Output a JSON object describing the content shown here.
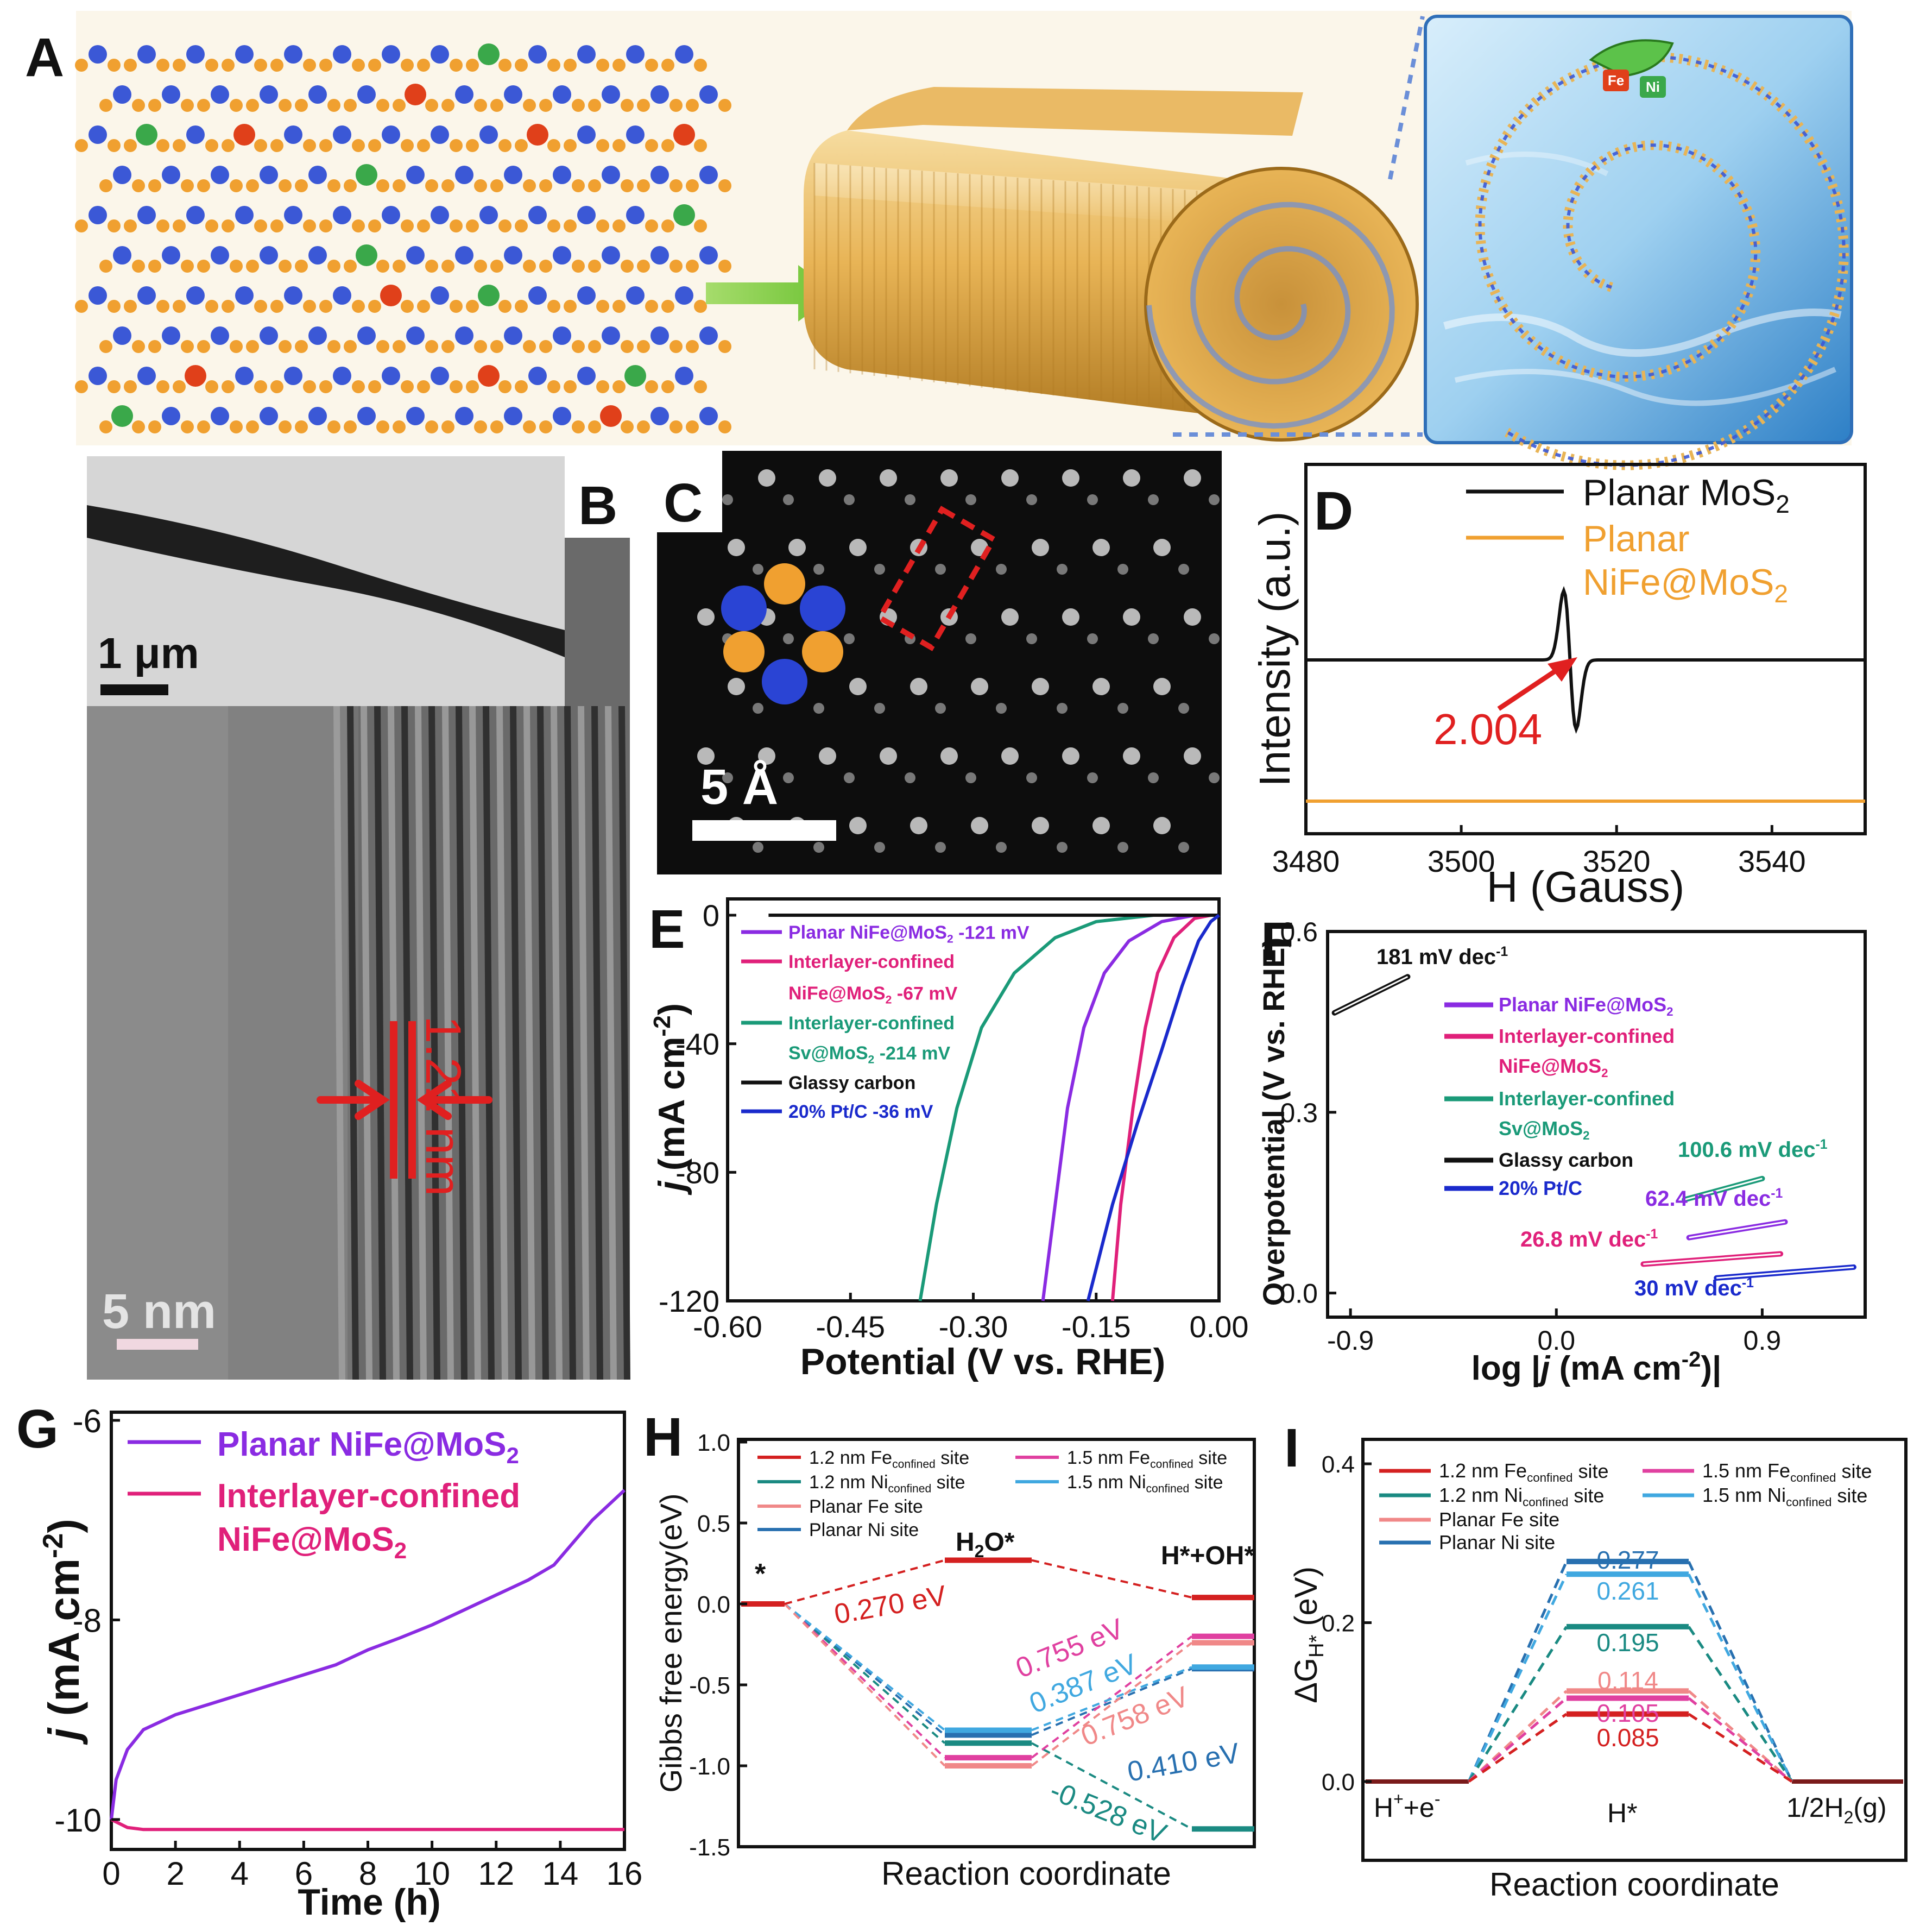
{
  "panel_letters": {
    "A": "A",
    "B": "B",
    "C": "C",
    "D": "D",
    "E": "E",
    "F": "F",
    "G": "G",
    "H": "H",
    "I": "I"
  },
  "images": {
    "panel_a": {
      "atoms": [
        "Fe",
        "Ni"
      ]
    },
    "panel_b": {
      "inset_scale": "1 μm",
      "scale": "5 nm",
      "spacing": "1.21 nm"
    },
    "panel_c": {
      "scale": "5 Å"
    }
  },
  "colors": {
    "black": "#111111",
    "orange": "#f0a030",
    "red": "#e02020",
    "purple": "#8a2be2",
    "pink": "#e0207a",
    "green": "#1a9a78",
    "blue": "#1a2acc",
    "h_red": "#d42020",
    "h_teal": "#1a8a82",
    "h_salmon": "#f08888",
    "h_navy": "#2870b0",
    "h_magenta": "#e040a0",
    "h_sky": "#40a8e0"
  },
  "chart_data": [
    {
      "panel": "D",
      "type": "line",
      "xlabel": "H (Gauss)",
      "ylabel": "Intensity (a.u.)",
      "xlim": [
        3480,
        3552
      ],
      "xticks": [
        "3480",
        "3500",
        "3520",
        "3540"
      ],
      "series": [
        {
          "name": "Planar MoS2",
          "label_main": "Planar MoS",
          "label_sub": "2",
          "color_key": "black",
          "shape": "derivative peak",
          "center_gauss": 3514
        },
        {
          "name": "Planar NiFe@MoS2",
          "label_main": "Planar",
          "label_line2": "NiFe@MoS",
          "label_sub": "2",
          "color_key": "orange",
          "shape": "flat"
        }
      ],
      "annotation": "2.004"
    },
    {
      "panel": "E",
      "type": "line",
      "xlabel": "Potential (V vs. RHE)",
      "ylabel_main": "j",
      "ylabel_rest": " (mA cm",
      "ylabel_sup": "-2",
      "ylabel_end": ")",
      "xlim": [
        -0.6,
        0.0
      ],
      "ylim": [
        -120,
        0
      ],
      "xticks": [
        "-0.60",
        "-0.45",
        "-0.30",
        "-0.15",
        "0.00"
      ],
      "yticks": [
        "0",
        "-40",
        "-80",
        "-120"
      ],
      "legend": [
        {
          "color_key": "purple",
          "lines": [
            "Planar NiFe@MoS",
            "2",
            " -121 mV"
          ]
        },
        {
          "color_key": "pink",
          "lines": [
            "Interlayer-confined",
            "NiFe@MoS",
            "2",
            " -67 mV"
          ]
        },
        {
          "color_key": "green",
          "lines": [
            "Interlayer-confined",
            "Sv@MoS",
            "2",
            " -214 mV"
          ]
        },
        {
          "color_key": "black",
          "lines": [
            "Glassy carbon"
          ]
        },
        {
          "color_key": "blue",
          "lines": [
            "20% Pt/C -36 mV"
          ]
        }
      ],
      "series": [
        {
          "name": "Planar NiFe@MoS2",
          "color_key": "purple",
          "points": [
            [
              -0.215,
              -120
            ],
            [
              -0.2,
              -90
            ],
            [
              -0.185,
              -60
            ],
            [
              -0.165,
              -35
            ],
            [
              -0.14,
              -18
            ],
            [
              -0.11,
              -8
            ],
            [
              -0.07,
              -2
            ],
            [
              -0.03,
              0
            ]
          ]
        },
        {
          "name": "Interlayer-confined NiFe@MoS2",
          "color_key": "pink",
          "points": [
            [
              -0.13,
              -120
            ],
            [
              -0.12,
              -90
            ],
            [
              -0.105,
              -60
            ],
            [
              -0.09,
              -35
            ],
            [
              -0.075,
              -18
            ],
            [
              -0.055,
              -7
            ],
            [
              -0.03,
              -1
            ],
            [
              -0.01,
              0
            ]
          ]
        },
        {
          "name": "Interlayer-confined Sv@MoS2",
          "color_key": "green",
          "points": [
            [
              -0.365,
              -120
            ],
            [
              -0.345,
              -90
            ],
            [
              -0.32,
              -60
            ],
            [
              -0.29,
              -35
            ],
            [
              -0.25,
              -18
            ],
            [
              -0.2,
              -7
            ],
            [
              -0.15,
              -2
            ],
            [
              -0.08,
              0
            ]
          ]
        },
        {
          "name": "Glassy carbon",
          "color_key": "black",
          "points": [
            [
              -0.55,
              0
            ],
            [
              -0.3,
              0
            ],
            [
              -0.1,
              0
            ],
            [
              0.0,
              0
            ]
          ]
        },
        {
          "name": "20% Pt/C",
          "color_key": "blue",
          "points": [
            [
              -0.16,
              -120
            ],
            [
              -0.13,
              -90
            ],
            [
              -0.1,
              -65
            ],
            [
              -0.07,
              -42
            ],
            [
              -0.045,
              -22
            ],
            [
              -0.025,
              -8
            ],
            [
              -0.01,
              -2
            ],
            [
              0.0,
              0
            ]
          ]
        }
      ]
    },
    {
      "panel": "F",
      "type": "line",
      "xlabel_main": "log |",
      "xlabel_j": "j",
      "xlabel_rest": " (mA cm",
      "xlabel_sup": "-2",
      "xlabel_end": ")|",
      "ylabel": "Overpotential (V vs. RHE)",
      "xlim": [
        -1.0,
        1.35
      ],
      "ylim": [
        -0.04,
        0.6
      ],
      "xticks": [
        "-0.9",
        "0.0",
        "0.9"
      ],
      "yticks": [
        "0.0",
        "0.3",
        "0.6"
      ],
      "legend": [
        {
          "color_key": "purple",
          "lines": [
            "Planar NiFe@MoS",
            "2"
          ]
        },
        {
          "color_key": "pink",
          "lines": [
            "Interlayer-confined",
            "NiFe@MoS",
            "2"
          ]
        },
        {
          "color_key": "green",
          "lines": [
            "Interlayer-confined",
            "Sv@MoS",
            "2"
          ]
        },
        {
          "color_key": "black",
          "lines": [
            "Glassy carbon"
          ]
        },
        {
          "color_key": "blue",
          "lines": [
            "20% Pt/C"
          ]
        }
      ],
      "series": [
        {
          "name": "Glassy carbon",
          "color_key": "black",
          "slope_label": "181 mV dec",
          "slope_sup": "-1",
          "points": [
            [
              -0.97,
              0.465
            ],
            [
              -0.65,
              0.525
            ]
          ]
        },
        {
          "name": "Interlayer-confined Sv@MoS2",
          "color_key": "green",
          "slope_label": "100.6 mV dec",
          "slope_sup": "-1",
          "points": [
            [
              0.56,
              0.155
            ],
            [
              0.9,
              0.19
            ]
          ]
        },
        {
          "name": "Planar NiFe@MoS2",
          "color_key": "purple",
          "slope_label": "62.4 mV dec",
          "slope_sup": "-1",
          "points": [
            [
              0.58,
              0.092
            ],
            [
              1.0,
              0.118
            ]
          ]
        },
        {
          "name": "Interlayer-confined NiFe@MoS2",
          "color_key": "pink",
          "slope_label": "26.8 mV dec",
          "slope_sup": "-1",
          "points": [
            [
              0.38,
              0.048
            ],
            [
              0.98,
              0.065
            ]
          ]
        },
        {
          "name": "20% Pt/C",
          "color_key": "blue",
          "slope_label": "30 mV dec",
          "slope_sup": "-1",
          "points": [
            [
              0.7,
              0.025
            ],
            [
              1.3,
              0.043
            ]
          ]
        }
      ]
    },
    {
      "panel": "G",
      "type": "line",
      "xlabel": "Time (h)",
      "ylabel_main": "j",
      "ylabel_rest": " (mA cm",
      "ylabel_sup": "-2",
      "ylabel_end": ")",
      "xlim": [
        0,
        16
      ],
      "ylim": [
        -10.3,
        -6
      ],
      "xticks": [
        "0",
        "2",
        "4",
        "6",
        "8",
        "10",
        "12",
        "14",
        "16"
      ],
      "yticks": [
        "-6",
        "-8",
        "-10"
      ],
      "series": [
        {
          "name": "Planar NiFe@MoS2",
          "label_main": "Planar NiFe@MoS",
          "label_sub": "2",
          "color_key": "purple",
          "points": [
            [
              0,
              -10.0
            ],
            [
              0.15,
              -9.6
            ],
            [
              0.5,
              -9.3
            ],
            [
              1,
              -9.1
            ],
            [
              2,
              -8.95
            ],
            [
              3,
              -8.85
            ],
            [
              4,
              -8.75
            ],
            [
              5,
              -8.65
            ],
            [
              6,
              -8.55
            ],
            [
              7,
              -8.45
            ],
            [
              8,
              -8.3
            ],
            [
              9,
              -8.18
            ],
            [
              10,
              -8.05
            ],
            [
              11,
              -7.9
            ],
            [
              12,
              -7.75
            ],
            [
              13,
              -7.6
            ],
            [
              13.8,
              -7.45
            ],
            [
              14.2,
              -7.3
            ],
            [
              15,
              -7.0
            ],
            [
              16,
              -6.7
            ]
          ]
        },
        {
          "name": "Interlayer-confined NiFe@MoS2",
          "label_main": "Interlayer-confined",
          "label_line2": "NiFe@MoS",
          "label_sub": "2",
          "color_key": "pink",
          "points": [
            [
              0,
              -10.0
            ],
            [
              0.5,
              -10.08
            ],
            [
              1,
              -10.1
            ],
            [
              2,
              -10.1
            ],
            [
              4,
              -10.1
            ],
            [
              6,
              -10.1
            ],
            [
              8,
              -10.1
            ],
            [
              10,
              -10.1
            ],
            [
              12,
              -10.1
            ],
            [
              14,
              -10.1
            ],
            [
              16,
              -10.1
            ]
          ]
        }
      ]
    },
    {
      "panel": "H",
      "type": "diagram",
      "xlabel": "Reaction coordinate",
      "ylabel": "Gibbs free energy(eV)",
      "ylim": [
        -1.5,
        1.0
      ],
      "yticks": [
        "1.0",
        "0.5",
        "0.0",
        "-0.5",
        "-1.0",
        "-1.5"
      ],
      "stage_labels": {
        "start": "*",
        "mid": "H",
        "mid_sub": "2",
        "mid_end": "O*",
        "end": "H*+OH*"
      },
      "legend": [
        {
          "color_key": "h_red",
          "main": "1.2 nm Fe",
          "sub": "confined",
          "end": " site"
        },
        {
          "color_key": "h_magenta",
          "main": "1.5 nm Fe",
          "sub": "confined",
          "end": " site"
        },
        {
          "color_key": "h_teal",
          "main": "1.2 nm Ni",
          "sub": "confined",
          "end": " site"
        },
        {
          "color_key": "h_sky",
          "main": "1.5 nm Ni",
          "sub": "confined",
          "end": " site"
        },
        {
          "color_key": "h_salmon",
          "main": "Planar Fe site",
          "sub": "",
          "end": ""
        },
        {
          "color_key": "h_navy",
          "main": "Planar Ni site",
          "sub": "",
          "end": ""
        }
      ],
      "series": [
        {
          "name": "1.2 nm Fe confined site",
          "color_key": "h_red",
          "levels": [
            0.0,
            0.27,
            0.04
          ]
        },
        {
          "name": "1.2 nm Ni confined site",
          "color_key": "h_teal",
          "levels": [
            0.0,
            -0.86,
            -1.39
          ]
        },
        {
          "name": "Planar Fe site",
          "color_key": "h_salmon",
          "levels": [
            0.0,
            -1.0,
            -0.24
          ]
        },
        {
          "name": "Planar Ni site",
          "color_key": "h_navy",
          "levels": [
            0.0,
            -0.81,
            -0.4
          ]
        },
        {
          "name": "1.5 nm Fe confined site",
          "color_key": "h_magenta",
          "levels": [
            0.0,
            -0.95,
            -0.2
          ]
        },
        {
          "name": "1.5 nm Ni confined site",
          "color_key": "h_sky",
          "levels": [
            0.0,
            -0.78,
            -0.39
          ]
        }
      ],
      "annotations": [
        {
          "text": "0.270 eV",
          "color_key": "h_red"
        },
        {
          "text": "0.755 eV",
          "color_key": "h_magenta"
        },
        {
          "text": "0.387 eV",
          "color_key": "h_sky"
        },
        {
          "text": "0.758 eV",
          "color_key": "h_salmon"
        },
        {
          "text": "0.410 eV",
          "color_key": "h_navy"
        },
        {
          "text": "-0.528 eV",
          "color_key": "h_teal"
        }
      ]
    },
    {
      "panel": "I",
      "type": "diagram",
      "xlabel": "Reaction coordinate",
      "ylabel_main": "ΔG",
      "ylabel_sub": "H*",
      "ylabel_end": " (eV)",
      "ylim": [
        0.0,
        0.4
      ],
      "yticks": [
        "0.4",
        "0.2",
        "0.0"
      ],
      "stage_labels": {
        "start_main": "H",
        "start_sup": "+",
        "start_mid": "+e",
        "start_sup2": "-",
        "mid": "H*",
        "end_main": "1/2H",
        "end_sub": "2",
        "end_end": "(g)"
      },
      "legend": [
        {
          "color_key": "h_red",
          "main": "1.2 nm Fe",
          "sub": "confined",
          "end": " site"
        },
        {
          "color_key": "h_magenta",
          "main": "1.5 nm Fe",
          "sub": "confined",
          "end": " site"
        },
        {
          "color_key": "h_teal",
          "main": "1.2 nm Ni",
          "sub": "confined",
          "end": " site"
        },
        {
          "color_key": "h_sky",
          "main": "1.5 nm Ni",
          "sub": "confined",
          "end": " site"
        },
        {
          "color_key": "h_salmon",
          "main": "Planar Fe site",
          "sub": "",
          "end": ""
        },
        {
          "color_key": "h_navy",
          "main": "Planar Ni site",
          "sub": "",
          "end": ""
        }
      ],
      "series": [
        {
          "name": "Planar Ni site",
          "color_key": "h_navy",
          "value": 0.277,
          "label": "0.277"
        },
        {
          "name": "1.5 nm Ni confined site",
          "color_key": "h_sky",
          "value": 0.261,
          "label": "0.261"
        },
        {
          "name": "1.2 nm Ni confined site",
          "color_key": "h_teal",
          "value": 0.195,
          "label": "0.195"
        },
        {
          "name": "Planar Fe site",
          "color_key": "h_salmon",
          "value": 0.114,
          "label": "0.114"
        },
        {
          "name": "1.5 nm Fe confined site",
          "color_key": "h_magenta",
          "value": 0.105,
          "label": "0.105"
        },
        {
          "name": "1.2 nm Fe confined site",
          "color_key": "h_red",
          "value": 0.085,
          "label": "0.085"
        }
      ]
    }
  ]
}
